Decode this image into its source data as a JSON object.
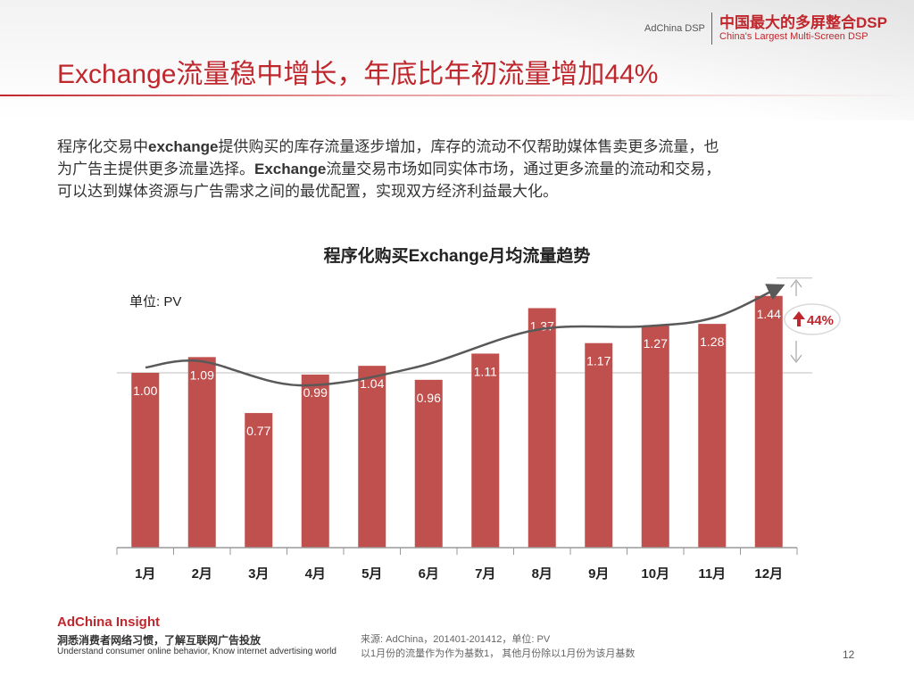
{
  "header": {
    "brand_small": "AdChina DSP",
    "brand_cn": "中国最大的多屏整合DSP",
    "brand_en": "China's Largest Multi-Screen DSP"
  },
  "page_title": "Exchange流量稳中增长，年底比年初流量增加44%",
  "intro": {
    "line1_a": "程序化交易中",
    "line1_bold": "exchange",
    "line1_b": "提供购买的库存流量逐步增加，库存的流动不仅帮助媒体售卖更多流量，也",
    "line2_a": "为广告主提供更多流量选择。",
    "line2_bold": "Exchange",
    "line2_b": "流量交易市场如同实体市场，通过更多流量的流动和交易，",
    "line3": "可以达到媒体资源与广告需求之间的最优配置，实现双方经济利益最大化。"
  },
  "chart_data": {
    "type": "bar",
    "title": "程序化购买Exchange月均流量趋势",
    "unit_label": "单位: PV",
    "categories": [
      "1月",
      "2月",
      "3月",
      "4月",
      "5月",
      "6月",
      "7月",
      "8月",
      "9月",
      "10月",
      "11月",
      "12月"
    ],
    "values": [
      1.0,
      1.09,
      0.77,
      0.99,
      1.04,
      0.96,
      1.11,
      1.37,
      1.17,
      1.27,
      1.28,
      1.44
    ],
    "value_labels": [
      "1.00",
      "1.09",
      "0.77",
      "0.99",
      "1.04",
      "0.96",
      "1.11",
      "1.37",
      "1.17",
      "1.27",
      "1.28",
      "1.44"
    ],
    "ylim": [
      0,
      1.5
    ],
    "bar_color": "#c0504d",
    "trend_line": "smooth curve with arrow, rising toward December",
    "annotation": "44%",
    "annotation_color": "#c0272d"
  },
  "footer": {
    "brand": "AdChina Insight",
    "tagline_cn": "洞悉消费者网络习惯，了解互联网广告投放",
    "tagline_en": "Understand consumer online behavior, Know internet advertising world",
    "source_line1": "来源: AdChina，201401-201412，单位: PV",
    "source_line2": "以1月份的流量作为作为基数1， 其他月份除以1月份为该月基数",
    "page_number": "12"
  }
}
